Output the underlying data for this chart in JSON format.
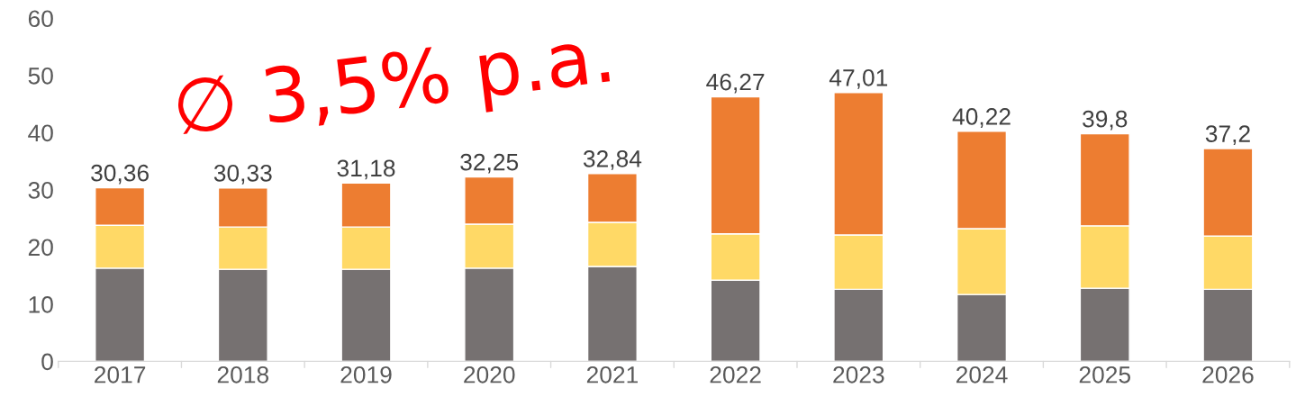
{
  "chart_data": {
    "type": "bar",
    "stacked": true,
    "categories": [
      "2017",
      "2018",
      "2019",
      "2020",
      "2021",
      "2022",
      "2023",
      "2024",
      "2025",
      "2026"
    ],
    "series": [
      {
        "color": "#767171",
        "values": [
          16.3,
          16.1,
          16.1,
          16.3,
          16.6,
          14.2,
          12.6,
          11.7,
          12.8,
          12.6
        ]
      },
      {
        "color": "#ffd966",
        "values": [
          7.5,
          7.4,
          7.4,
          7.7,
          7.7,
          8.1,
          9.5,
          11.5,
          10.9,
          9.3
        ]
      },
      {
        "color": "#ed7d31",
        "values": [
          6.56,
          6.83,
          7.68,
          8.25,
          8.54,
          23.97,
          24.91,
          17.02,
          16.1,
          15.3
        ]
      }
    ],
    "totals": [
      "30,36",
      "30,33",
      "31,18",
      "32,25",
      "32,84",
      "46,27",
      "47,01",
      "40,22",
      "39,8",
      "37,2"
    ],
    "ylim": [
      0,
      60
    ],
    "yticks": [
      0,
      10,
      20,
      30,
      40,
      50,
      60
    ],
    "grid": false,
    "legend": false,
    "annotations": [
      "∅ 3,5% p.a."
    ]
  }
}
